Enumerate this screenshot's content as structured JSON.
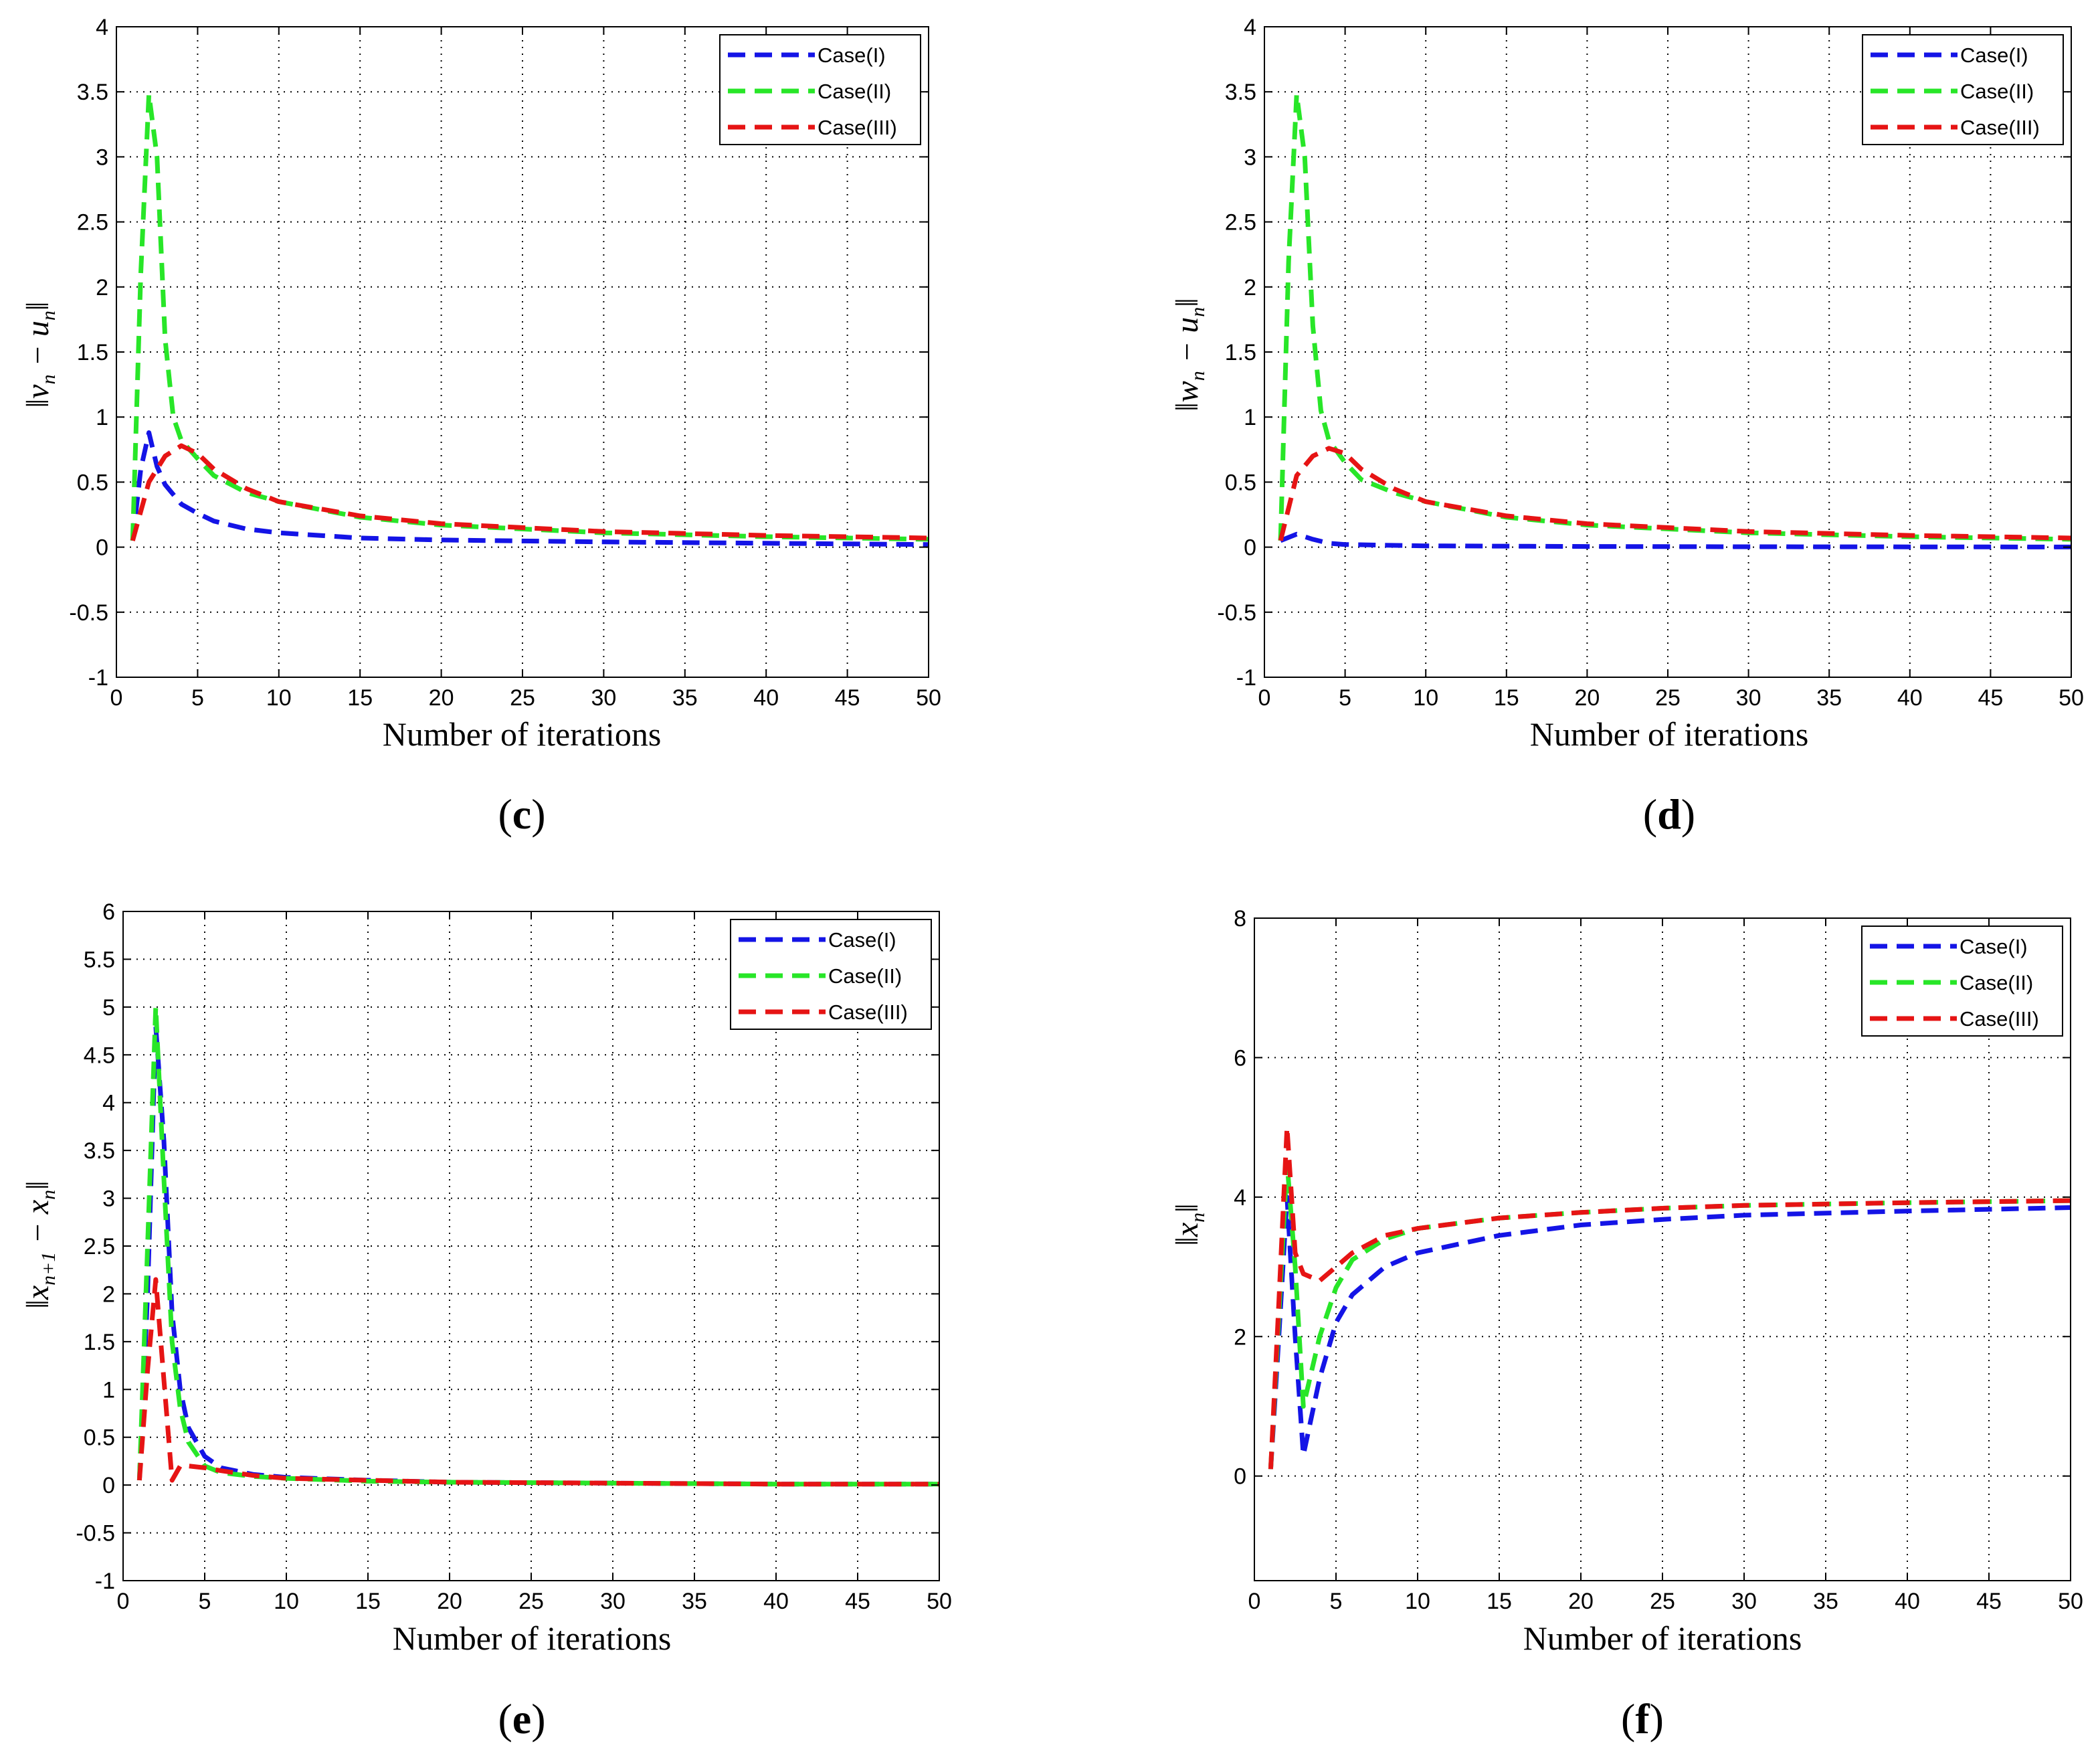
{
  "colors": {
    "case_i": "#1414e6",
    "case_ii": "#28e628",
    "case_iii": "#e61414",
    "grid": "#000000"
  },
  "chart_data": [
    {
      "panel": "c",
      "type": "line",
      "xlabel": "Number of iterations",
      "ylabel": "‖v_n − u_n‖",
      "xlim": [
        0,
        50
      ],
      "ylim": [
        -1,
        4
      ],
      "xticks": [
        0,
        5,
        10,
        15,
        20,
        25,
        30,
        35,
        40,
        45,
        50
      ],
      "yticks": [
        -1,
        -0.5,
        0,
        0.5,
        1,
        1.5,
        2,
        2.5,
        3,
        3.5,
        4
      ],
      "legend": "top-right",
      "series": [
        {
          "name": "Case(I)",
          "x": [
            1,
            1.5,
            2,
            2.5,
            3,
            4,
            5,
            6,
            8,
            10,
            15,
            20,
            30,
            40,
            50
          ],
          "y": [
            0.05,
            0.6,
            0.88,
            0.62,
            0.48,
            0.33,
            0.26,
            0.2,
            0.14,
            0.11,
            0.07,
            0.055,
            0.04,
            0.03,
            0.02
          ]
        },
        {
          "name": "Case(II)",
          "x": [
            1,
            1.5,
            2,
            2.5,
            3,
            3.5,
            4,
            5,
            6,
            8,
            10,
            15,
            20,
            30,
            40,
            50
          ],
          "y": [
            0.05,
            2.1,
            3.48,
            3.0,
            1.6,
            1.0,
            0.82,
            0.68,
            0.55,
            0.42,
            0.35,
            0.23,
            0.17,
            0.11,
            0.08,
            0.06
          ]
        },
        {
          "name": "Case(III)",
          "x": [
            1,
            2,
            3,
            4,
            5,
            6,
            8,
            10,
            15,
            20,
            30,
            40,
            50
          ],
          "y": [
            0.05,
            0.5,
            0.7,
            0.78,
            0.72,
            0.6,
            0.45,
            0.35,
            0.24,
            0.18,
            0.12,
            0.09,
            0.07
          ]
        }
      ]
    },
    {
      "panel": "d",
      "type": "line",
      "xlabel": "Number of iterations",
      "ylabel": "‖w_n − u_n‖",
      "xlim": [
        0,
        50
      ],
      "ylim": [
        -1,
        4
      ],
      "xticks": [
        0,
        5,
        10,
        15,
        20,
        25,
        30,
        35,
        40,
        45,
        50
      ],
      "yticks": [
        -1,
        -0.5,
        0,
        0.5,
        1,
        1.5,
        2,
        2.5,
        3,
        3.5,
        4
      ],
      "legend": "top-right",
      "series": [
        {
          "name": "Case(I)",
          "x": [
            1,
            2,
            3,
            4,
            5,
            10,
            20,
            30,
            40,
            50
          ],
          "y": [
            0.05,
            0.1,
            0.06,
            0.03,
            0.02,
            0.01,
            0.005,
            0.003,
            0.002,
            0.001
          ]
        },
        {
          "name": "Case(II)",
          "x": [
            1,
            1.5,
            2,
            2.5,
            3,
            3.5,
            4,
            5,
            6,
            8,
            10,
            15,
            20,
            30,
            40,
            50
          ],
          "y": [
            0.05,
            2.2,
            3.48,
            3.0,
            1.7,
            1.05,
            0.82,
            0.65,
            0.52,
            0.42,
            0.35,
            0.23,
            0.17,
            0.11,
            0.08,
            0.06
          ]
        },
        {
          "name": "Case(III)",
          "x": [
            1,
            2,
            3,
            4,
            5,
            6,
            8,
            10,
            15,
            20,
            30,
            40,
            50
          ],
          "y": [
            0.05,
            0.55,
            0.7,
            0.76,
            0.72,
            0.6,
            0.45,
            0.35,
            0.24,
            0.18,
            0.12,
            0.09,
            0.07
          ]
        }
      ]
    },
    {
      "panel": "e",
      "type": "line",
      "xlabel": "Number of iterations",
      "ylabel": "‖x_{n+1} − x_n‖",
      "xlim": [
        0,
        50
      ],
      "ylim": [
        -1,
        6
      ],
      "xticks": [
        0,
        5,
        10,
        15,
        20,
        25,
        30,
        35,
        40,
        45,
        50
      ],
      "yticks": [
        -1,
        -0.5,
        0,
        0.5,
        1,
        1.5,
        2,
        2.5,
        3,
        3.5,
        4,
        4.5,
        5,
        5.5,
        6
      ],
      "legend": "top-right",
      "series": [
        {
          "name": "Case(I)",
          "x": [
            1,
            1.5,
            2,
            2.5,
            3,
            3.5,
            4,
            5,
            6,
            8,
            10,
            15,
            20,
            30,
            40,
            50
          ],
          "y": [
            0.05,
            2.0,
            4.8,
            3.6,
            1.8,
            1.0,
            0.6,
            0.3,
            0.18,
            0.11,
            0.08,
            0.05,
            0.03,
            0.02,
            0.01,
            0.01
          ]
        },
        {
          "name": "Case(II)",
          "x": [
            1,
            1.5,
            2,
            2.5,
            3,
            3.5,
            4,
            5,
            6,
            8,
            10,
            15,
            20,
            30,
            40,
            50
          ],
          "y": [
            0.05,
            2.5,
            5.0,
            3.2,
            1.5,
            0.8,
            0.45,
            0.2,
            0.13,
            0.09,
            0.07,
            0.04,
            0.03,
            0.02,
            0.01,
            0.01
          ]
        },
        {
          "name": "Case(III)",
          "x": [
            1,
            1.5,
            2,
            2.5,
            3,
            3.5,
            4,
            5,
            6,
            8,
            10,
            15,
            20,
            30,
            40,
            50
          ],
          "y": [
            0.05,
            1.2,
            2.15,
            1.1,
            0.05,
            0.2,
            0.2,
            0.18,
            0.15,
            0.1,
            0.07,
            0.05,
            0.03,
            0.02,
            0.01,
            0.01
          ]
        }
      ]
    },
    {
      "panel": "f",
      "type": "line",
      "xlabel": "Number of iterations",
      "ylabel": "‖x_n‖",
      "xlim": [
        0,
        50
      ],
      "ylim": [
        -1.5,
        8
      ],
      "xticks": [
        0,
        5,
        10,
        15,
        20,
        25,
        30,
        35,
        40,
        45,
        50
      ],
      "yticks": [
        0,
        2,
        4,
        6,
        8
      ],
      "legend": "top-right",
      "series": [
        {
          "name": "Case(I)",
          "x": [
            1,
            1.5,
            2,
            2.5,
            3,
            4,
            5,
            6,
            8,
            10,
            15,
            20,
            25,
            30,
            40,
            50
          ],
          "y": [
            0.1,
            2.0,
            4.0,
            2.0,
            0.3,
            1.4,
            2.2,
            2.6,
            3.0,
            3.2,
            3.45,
            3.6,
            3.68,
            3.74,
            3.8,
            3.85
          ]
        },
        {
          "name": "Case(II)",
          "x": [
            1,
            1.5,
            2,
            2.5,
            3,
            4,
            5,
            6,
            8,
            10,
            15,
            20,
            25,
            30,
            40,
            50
          ],
          "y": [
            0.1,
            2.3,
            4.5,
            3.0,
            1.0,
            2.0,
            2.7,
            3.1,
            3.4,
            3.55,
            3.7,
            3.78,
            3.84,
            3.88,
            3.92,
            3.95
          ]
        },
        {
          "name": "Case(III)",
          "x": [
            1,
            1.5,
            2,
            2.5,
            3,
            4,
            5,
            6,
            8,
            10,
            15,
            20,
            25,
            30,
            40,
            50
          ],
          "y": [
            0.1,
            2.5,
            5.0,
            3.2,
            2.9,
            2.8,
            3.0,
            3.2,
            3.45,
            3.55,
            3.7,
            3.78,
            3.84,
            3.88,
            3.92,
            3.95
          ]
        }
      ]
    }
  ]
}
